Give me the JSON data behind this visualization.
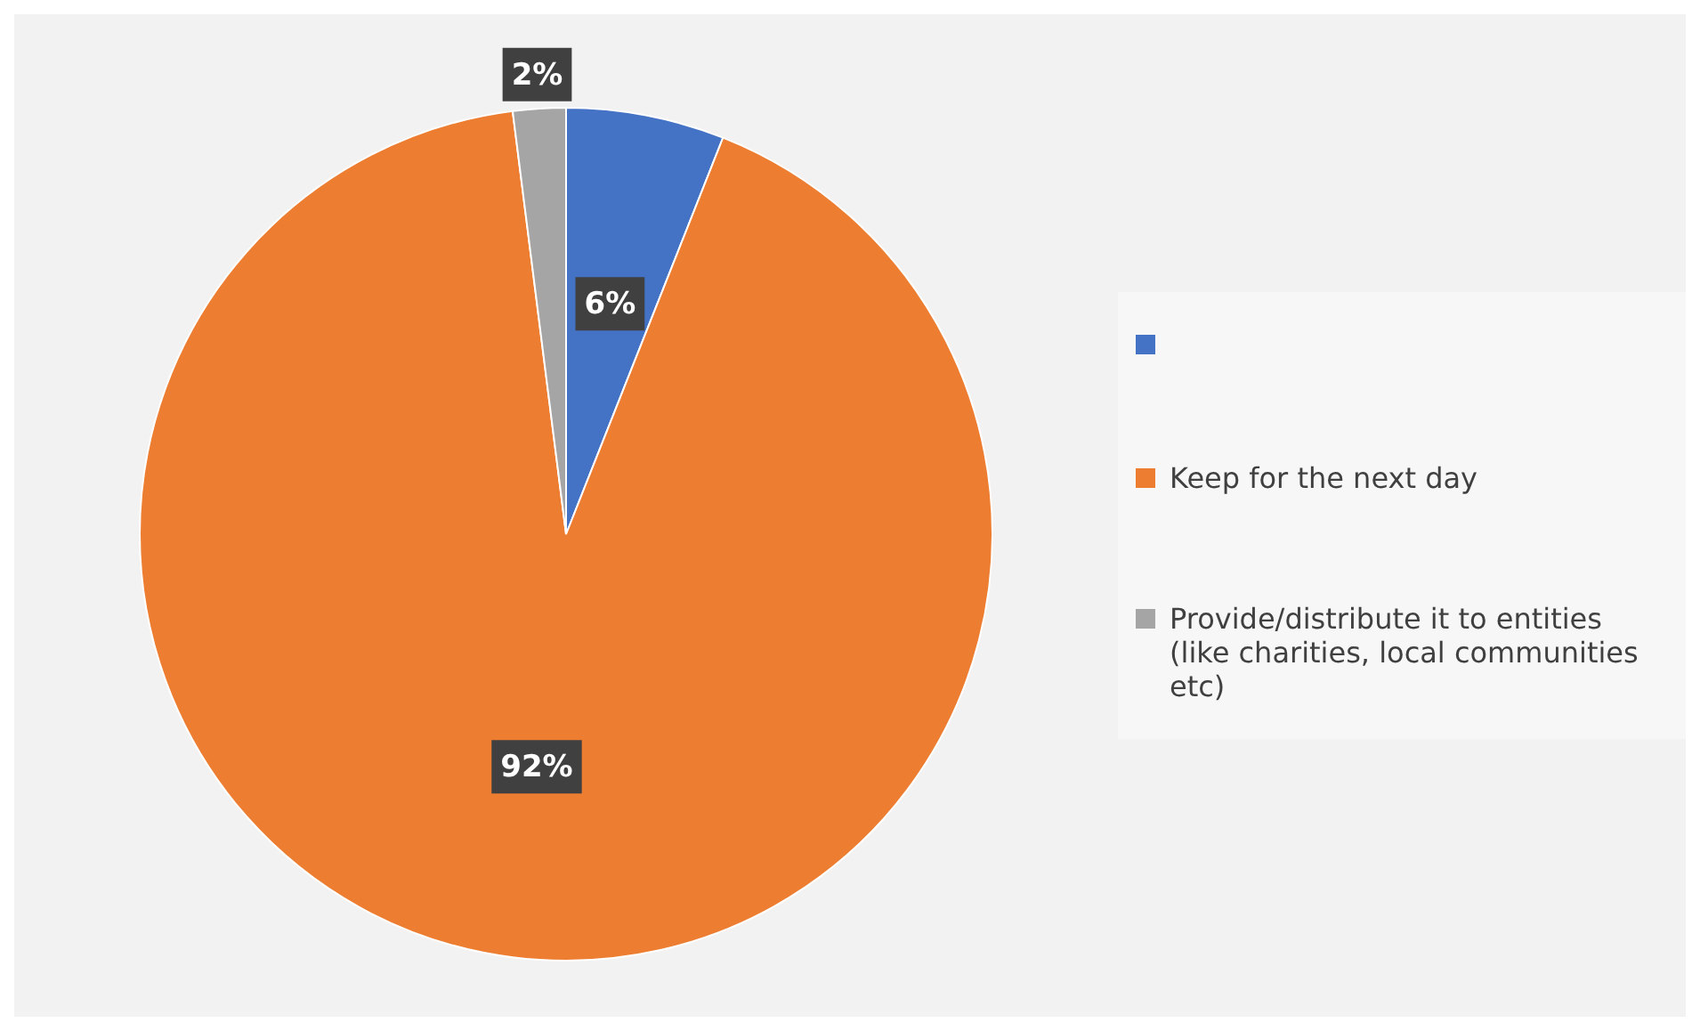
{
  "chart_data": {
    "type": "pie",
    "categories": [
      null,
      "Keep for the next day",
      "Provide/distribute it to entities (like charities, local communities etc)"
    ],
    "values": [
      6,
      92,
      2
    ],
    "colors": [
      "#4472c4",
      "#ed7d31",
      "#a5a5a5"
    ],
    "value_labels": [
      "6%",
      "92%",
      "2%"
    ],
    "legend": "right"
  }
}
